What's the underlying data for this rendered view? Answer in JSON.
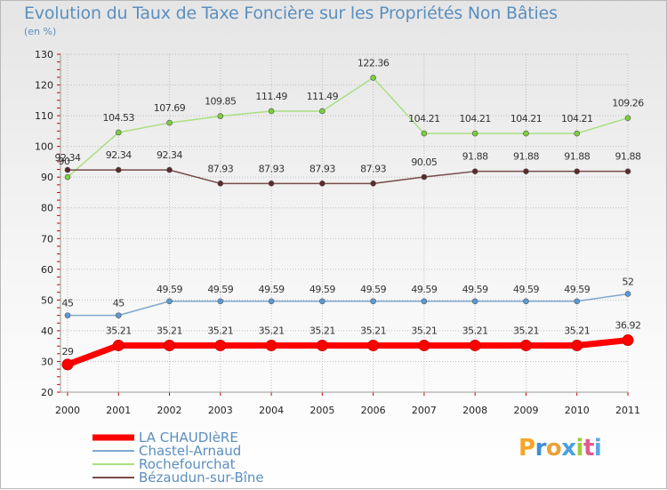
{
  "chart_data": {
    "type": "line",
    "title": "Evolution du Taux de Taxe Foncière sur les Propriétés Non Bâties",
    "ylabel": "(en %)",
    "xlabel": "",
    "ylim": [
      20,
      130
    ],
    "yticks": [
      20,
      30,
      40,
      50,
      60,
      70,
      80,
      90,
      100,
      110,
      120,
      130
    ],
    "grid": true,
    "legend_position": "bottom-left",
    "categories": [
      "2000",
      "2001",
      "2002",
      "2003",
      "2004",
      "2005",
      "2006",
      "2007",
      "2008",
      "2009",
      "2010",
      "2011"
    ],
    "series": [
      {
        "name": "LA CHAUDIèRE",
        "color": "#ff0000",
        "marker_color": "#ff0000",
        "values": [
          29,
          35.21,
          35.21,
          35.21,
          35.21,
          35.21,
          35.21,
          35.21,
          35.21,
          35.21,
          35.21,
          36.92
        ],
        "labels": [
          "29",
          "35.21",
          "35.21",
          "35.21",
          "35.21",
          "35.21",
          "35.21",
          "35.21",
          "35.21",
          "35.21",
          "35.21",
          "36.92"
        ]
      },
      {
        "name": "Chastel-Arnaud",
        "color": "#7fa8cf",
        "marker_color": "#5a9ad8",
        "values": [
          45,
          45,
          49.59,
          49.59,
          49.59,
          49.59,
          49.59,
          49.59,
          49.59,
          49.59,
          49.59,
          52
        ],
        "labels": [
          "45",
          "45",
          "49.59",
          "49.59",
          "49.59",
          "49.59",
          "49.59",
          "49.59",
          "49.59",
          "49.59",
          "49.59",
          "52"
        ]
      },
      {
        "name": "Rochefourchat",
        "color": "#a9df82",
        "marker_color": "#7acf3c",
        "values": [
          90,
          104.53,
          107.69,
          109.85,
          111.49,
          111.49,
          122.36,
          104.21,
          104.21,
          104.21,
          104.21,
          109.26
        ],
        "labels": [
          "90",
          "104.53",
          "107.69",
          "109.85",
          "111.49",
          "111.49",
          "122.36",
          "104.21",
          "104.21",
          "104.21",
          "104.21",
          "109.26"
        ]
      },
      {
        "name": "Bézaudun-sur-Bîne",
        "color": "#7a4a4a",
        "marker_color": "#5a2a2a",
        "values": [
          92.34,
          92.34,
          92.34,
          87.93,
          87.93,
          87.93,
          87.93,
          90.05,
          91.88,
          91.88,
          91.88,
          91.88
        ],
        "labels": [
          "92.34",
          "92.34",
          "92.34",
          "87.93",
          "87.93",
          "87.93",
          "87.93",
          "90.05",
          "91.88",
          "91.88",
          "91.88",
          "91.88"
        ]
      }
    ]
  },
  "branding": {
    "logo_text": "Proxiti",
    "logo_colors": [
      "#f5a623",
      "#3b8fd6",
      "#e8a33a",
      "#4aa0e0",
      "#9ccc3a",
      "#e05b8c",
      "#5aa8e6"
    ]
  }
}
